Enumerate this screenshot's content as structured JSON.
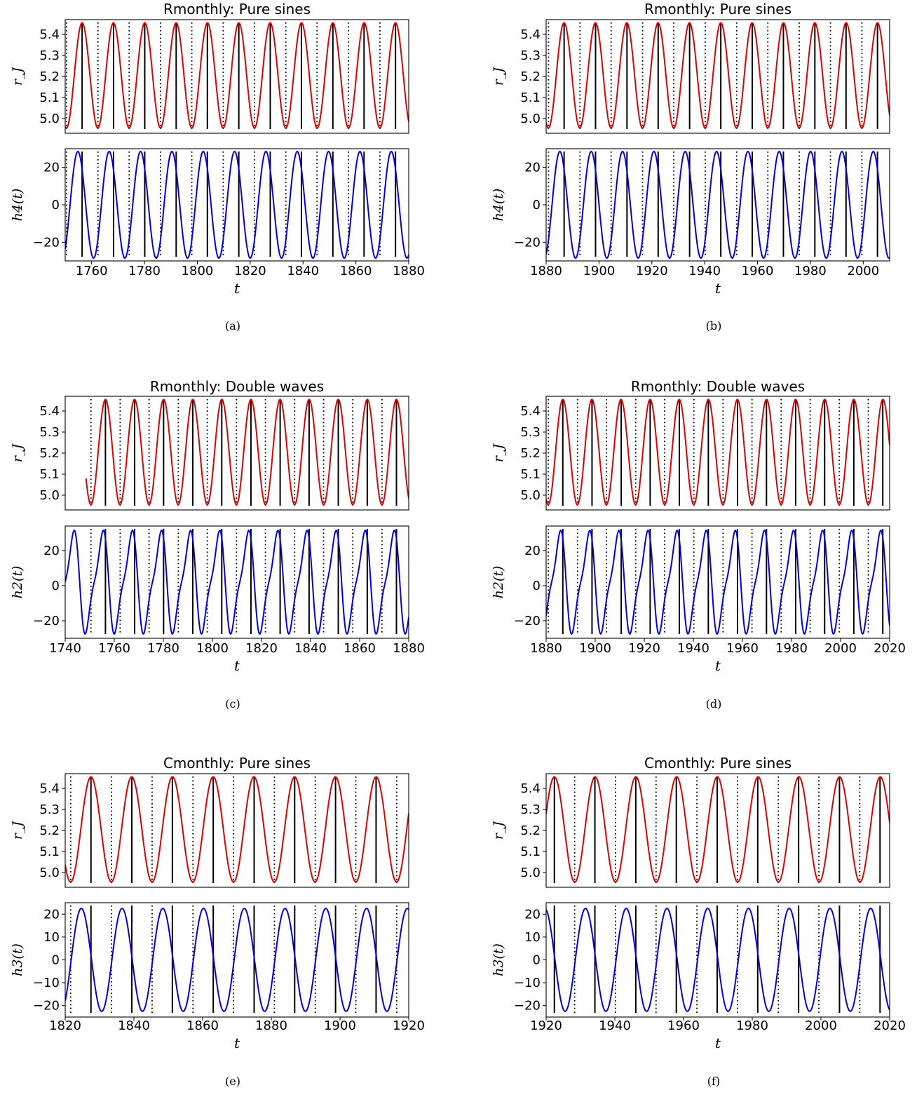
{
  "colors": {
    "r_series": "#e00000",
    "h_series": "#0000e6",
    "marker": "#000000",
    "axes": "#000000",
    "background": "#ffffff"
  },
  "chart_data": [
    {
      "id": "a",
      "type": "line",
      "caption": "(a)",
      "title": "Rmonthly: Pure sines",
      "xlabel": "t",
      "xlim": [
        1750,
        1880
      ],
      "xticks": [
        1760,
        1780,
        1800,
        1820,
        1840,
        1860,
        1880
      ],
      "top": {
        "ylabel": "r_J",
        "ylim": [
          4.93,
          5.47
        ],
        "yticks": [
          5.0,
          5.1,
          5.2,
          5.3,
          5.4
        ],
        "ytick_labels": [
          "5.0",
          "5.1",
          "5.2",
          "5.3",
          "5.4"
        ],
        "series": [
          {
            "shape": "sine",
            "mean": 5.205,
            "amplitude": 0.25,
            "period": 11.86,
            "peak_t": 1756.4,
            "start": 1750,
            "end": 1880
          }
        ],
        "solid_markers": [
          1756.4,
          1768.3,
          1780.1,
          1792.0,
          1803.8,
          1815.7,
          1827.6,
          1839.4,
          1851.3,
          1863.1,
          1875.0
        ],
        "dotted_markers": [
          1750.5,
          1762.4,
          1774.2,
          1786.1,
          1797.9,
          1809.8,
          1821.6,
          1833.5,
          1845.3,
          1857.2,
          1869.1
        ]
      },
      "bottom": {
        "ylabel": "h4(t)",
        "ylim": [
          -30,
          30
        ],
        "yticks": [
          -20,
          0,
          20
        ],
        "ytick_labels": [
          "−20",
          "0",
          "20"
        ],
        "series": [
          {
            "shape": "sine",
            "mean": 0,
            "amplitude": 28.5,
            "period": 11.86,
            "peak_t": 1754.8,
            "start": 1750,
            "end": 1880
          }
        ],
        "solid_markers": [
          1756.4,
          1768.3,
          1780.1,
          1792.0,
          1803.8,
          1815.7,
          1827.6,
          1839.4,
          1851.3,
          1863.1,
          1875.0
        ],
        "dotted_markers": [
          1750.5,
          1762.4,
          1774.2,
          1786.1,
          1797.9,
          1809.8,
          1821.6,
          1833.5,
          1845.3,
          1857.2,
          1869.1
        ]
      }
    },
    {
      "id": "b",
      "type": "line",
      "caption": "(b)",
      "title": "Rmonthly: Pure sines",
      "xlabel": "t",
      "xlim": [
        1880,
        2010
      ],
      "xticks": [
        1880,
        1900,
        1920,
        1940,
        1960,
        1980,
        2000
      ],
      "top": {
        "ylabel": "r_J",
        "ylim": [
          4.93,
          5.47
        ],
        "yticks": [
          5.0,
          5.1,
          5.2,
          5.3,
          5.4
        ],
        "ytick_labels": [
          "5.0",
          "5.1",
          "5.2",
          "5.3",
          "5.4"
        ],
        "series": [
          {
            "shape": "sine",
            "mean": 5.205,
            "amplitude": 0.25,
            "period": 11.86,
            "peak_t": 1886.8,
            "start": 1880,
            "end": 2010
          }
        ],
        "solid_markers": [
          1886.8,
          1898.7,
          1910.6,
          1922.4,
          1934.3,
          1946.1,
          1958.0,
          1969.8,
          1981.7,
          1993.5,
          2005.4
        ],
        "dotted_markers": [
          1880.9,
          1892.8,
          1904.6,
          1916.5,
          1928.3,
          1940.2,
          1952.1,
          1963.9,
          1975.8,
          1987.6,
          1999.5
        ]
      },
      "bottom": {
        "ylabel": "h4(t)",
        "ylim": [
          -30,
          30
        ],
        "yticks": [
          -20,
          0,
          20
        ],
        "ytick_labels": [
          "−20",
          "0",
          "20"
        ],
        "series": [
          {
            "shape": "sine",
            "mean": 0,
            "amplitude": 28.5,
            "period": 11.86,
            "peak_t": 1885.2,
            "start": 1880,
            "end": 2010
          }
        ],
        "solid_markers": [
          1886.8,
          1898.7,
          1910.6,
          1922.4,
          1934.3,
          1946.1,
          1958.0,
          1969.8,
          1981.7,
          1993.5,
          2005.4
        ],
        "dotted_markers": [
          1880.9,
          1892.8,
          1904.6,
          1916.5,
          1928.3,
          1940.2,
          1952.1,
          1963.9,
          1975.8,
          1987.6,
          1999.5
        ]
      }
    },
    {
      "id": "c",
      "type": "line",
      "caption": "(c)",
      "title": "Rmonthly: Double waves",
      "xlabel": "t",
      "xlim": [
        1740,
        1880
      ],
      "xticks": [
        1740,
        1760,
        1780,
        1800,
        1820,
        1840,
        1860,
        1880
      ],
      "top": {
        "ylabel": "r_J",
        "ylim": [
          4.93,
          5.47
        ],
        "yticks": [
          5.0,
          5.1,
          5.2,
          5.3,
          5.4
        ],
        "ytick_labels": [
          "5.0",
          "5.1",
          "5.2",
          "5.3",
          "5.4"
        ],
        "series": [
          {
            "shape": "sine",
            "mean": 5.205,
            "amplitude": 0.25,
            "period": 11.86,
            "peak_t": 1756.4,
            "start": 1748.5,
            "end": 1880
          }
        ],
        "solid_markers": [
          1756.4,
          1768.3,
          1780.1,
          1792.0,
          1803.8,
          1815.7,
          1827.6,
          1839.4,
          1851.3,
          1863.1,
          1875.0
        ],
        "dotted_markers": [
          1750.5,
          1762.4,
          1774.2,
          1786.1,
          1797.9,
          1809.8,
          1821.6,
          1833.5,
          1845.3,
          1857.2,
          1869.1
        ]
      },
      "bottom": {
        "ylabel": "h2(t)",
        "ylim": [
          -30,
          34
        ],
        "yticks": [
          -20,
          0,
          20
        ],
        "ytick_labels": [
          "−20",
          "0",
          "20"
        ],
        "series": [
          {
            "shape": "double",
            "mean": 2,
            "amplitude": 30,
            "period": 11.86,
            "peak_t": 1754.8,
            "start": 1740,
            "end": 1880
          }
        ],
        "solid_markers": [
          1756.4,
          1768.3,
          1780.1,
          1792.0,
          1803.8,
          1815.7,
          1827.6,
          1839.4,
          1851.3,
          1863.1,
          1875.0
        ],
        "dotted_markers": [
          1750.5,
          1762.4,
          1774.2,
          1786.1,
          1797.9,
          1809.8,
          1821.6,
          1833.5,
          1845.3,
          1857.2,
          1869.1
        ]
      }
    },
    {
      "id": "d",
      "type": "line",
      "caption": "(d)",
      "title": "Rmonthly: Double waves",
      "xlabel": "t",
      "xlim": [
        1880,
        2020
      ],
      "xticks": [
        1880,
        1900,
        1920,
        1940,
        1960,
        1980,
        2000,
        2020
      ],
      "top": {
        "ylabel": "r_J",
        "ylim": [
          4.93,
          5.47
        ],
        "yticks": [
          5.0,
          5.1,
          5.2,
          5.3,
          5.4
        ],
        "ytick_labels": [
          "5.0",
          "5.1",
          "5.2",
          "5.3",
          "5.4"
        ],
        "series": [
          {
            "shape": "sine",
            "mean": 5.205,
            "amplitude": 0.25,
            "period": 11.86,
            "peak_t": 1886.8,
            "start": 1880,
            "end": 2020
          }
        ],
        "solid_markers": [
          1886.8,
          1898.7,
          1910.6,
          1922.4,
          1934.3,
          1946.1,
          1958.0,
          1969.8,
          1981.7,
          1993.5,
          2005.4,
          2017.2
        ],
        "dotted_markers": [
          1880.9,
          1892.8,
          1904.6,
          1916.5,
          1928.3,
          1940.2,
          1952.1,
          1963.9,
          1975.8,
          1987.6,
          1999.5,
          2011.3
        ]
      },
      "bottom": {
        "ylabel": "h2(t)",
        "ylim": [
          -30,
          34
        ],
        "yticks": [
          -20,
          0,
          20
        ],
        "ytick_labels": [
          "−20",
          "0",
          "20"
        ],
        "series": [
          {
            "shape": "double",
            "mean": 2,
            "amplitude": 30,
            "period": 11.86,
            "peak_t": 1885.2,
            "start": 1880,
            "end": 2020
          }
        ],
        "solid_markers": [
          1886.8,
          1898.7,
          1910.6,
          1922.4,
          1934.3,
          1946.1,
          1958.0,
          1969.8,
          1981.7,
          1993.5,
          2005.4,
          2017.2
        ],
        "dotted_markers": [
          1880.9,
          1892.8,
          1904.6,
          1916.5,
          1928.3,
          1940.2,
          1952.1,
          1963.9,
          1975.8,
          1987.6,
          1999.5,
          2011.3
        ]
      }
    },
    {
      "id": "e",
      "type": "line",
      "caption": "(e)",
      "title": "Cmonthly: Pure sines",
      "xlabel": "t",
      "xlim": [
        1820,
        1920
      ],
      "xticks": [
        1820,
        1840,
        1860,
        1880,
        1900,
        1920
      ],
      "top": {
        "ylabel": "r_J",
        "ylim": [
          4.93,
          5.47
        ],
        "yticks": [
          5.0,
          5.1,
          5.2,
          5.3,
          5.4
        ],
        "ytick_labels": [
          "5.0",
          "5.1",
          "5.2",
          "5.3",
          "5.4"
        ],
        "series": [
          {
            "shape": "sine",
            "mean": 5.205,
            "amplitude": 0.25,
            "period": 11.86,
            "peak_t": 1827.5,
            "start": 1820,
            "end": 1920
          }
        ],
        "solid_markers": [
          1827.5,
          1839.4,
          1851.2,
          1863.1,
          1875.0,
          1886.8,
          1898.7,
          1910.5
        ],
        "dotted_markers": [
          1821.6,
          1833.5,
          1845.3,
          1857.2,
          1869.0,
          1880.9,
          1892.8,
          1904.6,
          1916.5
        ]
      },
      "bottom": {
        "ylabel": "h3(t)",
        "ylim": [
          -25,
          25
        ],
        "yticks": [
          -20,
          -10,
          0,
          10,
          20
        ],
        "ytick_labels": [
          "−20",
          "−10",
          "0",
          "10",
          "20"
        ],
        "series": [
          {
            "shape": "sine",
            "mean": 0,
            "amplitude": 22.5,
            "period": 11.86,
            "peak_t": 1824.7,
            "start": 1820,
            "end": 1920
          }
        ],
        "solid_markers": [
          1827.5,
          1839.4,
          1851.2,
          1863.1,
          1875.0,
          1886.8,
          1898.7,
          1910.5
        ],
        "dotted_markers": [
          1821.6,
          1833.5,
          1845.3,
          1857.2,
          1869.0,
          1880.9,
          1892.8,
          1904.6,
          1916.5
        ]
      }
    },
    {
      "id": "f",
      "type": "line",
      "caption": "(f)",
      "title": "Cmonthly: Pure sines",
      "xlabel": "t",
      "xlim": [
        1920,
        2020
      ],
      "xticks": [
        1920,
        1940,
        1960,
        1980,
        2000,
        2020
      ],
      "top": {
        "ylabel": "r_J",
        "ylim": [
          4.93,
          5.47
        ],
        "yticks": [
          5.0,
          5.1,
          5.2,
          5.3,
          5.4
        ],
        "ytick_labels": [
          "5.0",
          "5.1",
          "5.2",
          "5.3",
          "5.4"
        ],
        "series": [
          {
            "shape": "sine",
            "mean": 5.205,
            "amplitude": 0.25,
            "period": 11.86,
            "peak_t": 1922.4,
            "start": 1920,
            "end": 2020
          }
        ],
        "solid_markers": [
          1922.4,
          1934.2,
          1946.1,
          1957.9,
          1969.8,
          1981.6,
          1993.5,
          2005.4,
          2017.2
        ],
        "dotted_markers": [
          1928.3,
          1940.2,
          1952.0,
          1963.9,
          1975.7,
          1987.6,
          1999.4,
          2011.3
        ]
      },
      "bottom": {
        "ylabel": "h3(t)",
        "ylim": [
          -25,
          25
        ],
        "yticks": [
          -20,
          -10,
          0,
          10,
          20
        ],
        "ytick_labels": [
          "−20",
          "−10",
          "0",
          "10",
          "20"
        ],
        "series": [
          {
            "shape": "sine",
            "mean": 0,
            "amplitude": 22.5,
            "period": 11.86,
            "peak_t": 1919.6,
            "start": 1920,
            "end": 2020
          }
        ],
        "solid_markers": [
          1922.4,
          1934.2,
          1946.1,
          1957.9,
          1969.8,
          1981.6,
          1993.5,
          2005.4,
          2017.2
        ],
        "dotted_markers": [
          1928.3,
          1940.2,
          1952.0,
          1963.9,
          1975.7,
          1987.6,
          1999.4,
          2011.3
        ]
      }
    }
  ]
}
